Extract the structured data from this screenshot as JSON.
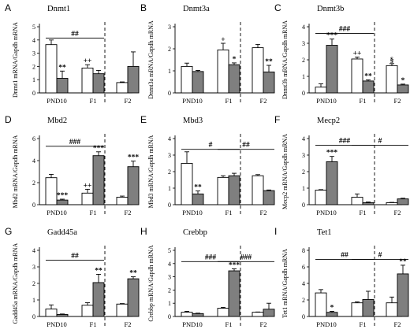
{
  "figure": {
    "colors": {
      "open": "#ffffff",
      "filled": "#7f7f7f",
      "stroke": "#000000"
    },
    "panels": [
      {
        "letter": "A",
        "title": "Dnmt1",
        "ylabel": "Dnmt1 mRNA/Gapdh mRNA"
      },
      {
        "letter": "B",
        "title": "Dnmt3a",
        "ylabel": "Dnmt3a mRNA/Gapdh mRNA"
      },
      {
        "letter": "C",
        "title": "Dnmt3b",
        "ylabel": "Dnmt3b mRNA/Gapdh mRNA"
      },
      {
        "letter": "D",
        "title": "Mbd2",
        "ylabel": "Mbd2 mRNA/Gapdh mRNA"
      },
      {
        "letter": "E",
        "title": "Mbd3",
        "ylabel": "Mbd3 mRNA/Gapdh mRNA"
      },
      {
        "letter": "F",
        "title": "Mecp2",
        "ylabel": "Mecp2 mRNA/Gapdh mRNA"
      },
      {
        "letter": "G",
        "title": "Gadd45a",
        "ylabel": "Gadd45a mRNA/Gapdh mRNA"
      },
      {
        "letter": "H",
        "title": "Crebbp",
        "ylabel": "Crebbp mRNA/Gapdh mRNA"
      },
      {
        "letter": "I",
        "title": "Tet1",
        "ylabel": "Tet1 mRNA/Gapdh mRNA"
      }
    ]
  },
  "chart_data": [
    {
      "type": "bar",
      "title": "Dnmt1",
      "ylabel": "Dnmt1 mRNA/Gapdh mRNA",
      "categories": [
        "PND10",
        "F1",
        "F2"
      ],
      "ylim": [
        0,
        5
      ],
      "yticks": [
        0,
        1,
        2,
        3,
        4,
        5
      ],
      "series": [
        {
          "values": [
            3.65,
            1.88,
            0.78
          ],
          "errors": [
            0.35,
            0.25,
            0.05
          ]
        },
        {
          "values": [
            1.1,
            1.45,
            2.0
          ],
          "errors": [
            0.55,
            0.25,
            1.1
          ]
        }
      ],
      "annotations": [
        {
          "text": "**",
          "group": 0,
          "bar": 1
        },
        {
          "text": "++",
          "group": 1,
          "bar": 0
        }
      ],
      "brackets": [
        {
          "text": "##",
          "from": 0,
          "to": 1,
          "level": 4.15
        }
      ]
    },
    {
      "type": "bar",
      "title": "Dnmt3a",
      "ylabel": "Dnmt3a mRNA/Gapdh mRNA",
      "categories": [
        "PND10",
        "F1",
        "F2"
      ],
      "ylim": [
        0,
        3
      ],
      "yticks": [
        0,
        1,
        2,
        3
      ],
      "series": [
        {
          "values": [
            1.2,
            1.95,
            2.05
          ],
          "errors": [
            0.15,
            0.3,
            0.15
          ]
        },
        {
          "values": [
            0.97,
            1.28,
            0.95
          ],
          "errors": [
            0.05,
            0.08,
            0.3
          ]
        }
      ],
      "annotations": [
        {
          "text": "+",
          "group": 1,
          "bar": 0
        },
        {
          "text": "*",
          "group": 1,
          "bar": 1
        },
        {
          "text": "**",
          "group": 2,
          "bar": 1
        }
      ],
      "brackets": []
    },
    {
      "type": "bar",
      "title": "Dnmt3b",
      "ylabel": "Dnmt3b mRNA/Gapdh mRNA",
      "categories": [
        "PND10",
        "F1",
        "F2"
      ],
      "ylim": [
        0,
        4
      ],
      "yticks": [
        0,
        1,
        2,
        3,
        4
      ],
      "series": [
        {
          "values": [
            0.35,
            2.05,
            1.65
          ],
          "errors": [
            0.2,
            0.12,
            0.12
          ]
        },
        {
          "values": [
            2.88,
            0.72,
            0.48
          ],
          "errors": [
            0.38,
            0.07,
            0.05
          ]
        }
      ],
      "annotations": [
        {
          "text": "***",
          "group": 0,
          "bar": 1
        },
        {
          "text": "++",
          "group": 1,
          "bar": 0
        },
        {
          "text": "**",
          "group": 1,
          "bar": 1
        },
        {
          "text": "§",
          "group": 2,
          "bar": 0
        },
        {
          "text": "*",
          "group": 2,
          "bar": 1
        }
      ],
      "brackets": [
        {
          "text": "###",
          "from": 0,
          "to": 1,
          "level": 3.6
        }
      ]
    },
    {
      "type": "bar",
      "title": "Mbd2",
      "ylabel": "Mbd2 mRNA/Gapdh mRNA",
      "categories": [
        "PND10",
        "F1",
        "F2"
      ],
      "ylim": [
        0,
        6
      ],
      "yticks": [
        0,
        2,
        4,
        6
      ],
      "series": [
        {
          "values": [
            2.45,
            1.05,
            0.68
          ],
          "errors": [
            0.3,
            0.35,
            0.1
          ]
        },
        {
          "values": [
            0.42,
            4.45,
            3.45
          ],
          "errors": [
            0.08,
            0.35,
            0.5
          ]
        }
      ],
      "annotations": [
        {
          "text": "***",
          "group": 0,
          "bar": 1
        },
        {
          "text": "++",
          "group": 1,
          "bar": 0
        },
        {
          "text": "***",
          "group": 1,
          "bar": 1
        },
        {
          "text": "***",
          "group": 2,
          "bar": 1
        }
      ],
      "brackets": [
        {
          "text": "###",
          "from": 0,
          "to": 1,
          "level": 5.3
        }
      ]
    },
    {
      "type": "bar",
      "title": "Mbd3",
      "ylabel": "Mbd3 mRNA/Gapdh mRNA",
      "categories": [
        "PND10",
        "F1",
        "F2"
      ],
      "ylim": [
        0,
        4
      ],
      "yticks": [
        0,
        1,
        2,
        3,
        4
      ],
      "series": [
        {
          "values": [
            2.5,
            1.65,
            1.75
          ],
          "errors": [
            0.7,
            0.1,
            0.07
          ]
        },
        {
          "values": [
            0.65,
            1.75,
            0.85
          ],
          "errors": [
            0.18,
            0.15,
            0.04
          ]
        }
      ],
      "annotations": [
        {
          "text": "**",
          "group": 0,
          "bar": 1
        }
      ],
      "brackets": [
        {
          "text": "#",
          "from": 0,
          "to": 1,
          "level": 3.35
        },
        {
          "text": "##",
          "from": 1,
          "to": 2,
          "level": 3.35
        }
      ]
    },
    {
      "type": "bar",
      "title": "Mecp2",
      "ylabel": "Mecp2 mRNA/Gapdh mRNA",
      "categories": [
        "PND10",
        "F1",
        "F2"
      ],
      "ylim": [
        0,
        4
      ],
      "yticks": [
        0,
        1,
        2,
        3,
        4
      ],
      "series": [
        {
          "values": [
            0.88,
            0.45,
            0.12
          ],
          "errors": [
            0.03,
            0.2,
            0.02
          ]
        },
        {
          "values": [
            2.6,
            0.12,
            0.35
          ],
          "errors": [
            0.32,
            0.04,
            0.04
          ]
        }
      ],
      "annotations": [
        {
          "text": "***",
          "group": 0,
          "bar": 1
        }
      ],
      "brackets": [
        {
          "text": "###",
          "from": 0,
          "to": 1,
          "level": 3.6
        },
        {
          "text": "#",
          "from": 1,
          "to": 2,
          "level": 3.6
        }
      ]
    },
    {
      "type": "bar",
      "title": "Gadd45a",
      "ylabel": "Gadd45a mRNA/Gapdh mRNA",
      "categories": [
        "PND10",
        "F1",
        "F2"
      ],
      "ylim": [
        0,
        4
      ],
      "yticks": [
        0,
        1,
        2,
        3,
        4
      ],
      "series": [
        {
          "values": [
            0.45,
            0.68,
            0.75
          ],
          "errors": [
            0.25,
            0.15,
            0.03
          ]
        },
        {
          "values": [
            0.12,
            2.05,
            2.28
          ],
          "errors": [
            0.03,
            0.5,
            0.12
          ]
        }
      ],
      "annotations": [
        {
          "text": "**",
          "group": 1,
          "bar": 1
        },
        {
          "text": "**",
          "group": 2,
          "bar": 1
        }
      ],
      "brackets": [
        {
          "text": "##",
          "from": 0,
          "to": 1,
          "level": 3.4
        }
      ]
    },
    {
      "type": "bar",
      "title": "Crebbp",
      "ylabel": "Crebbp mRNA/Gapdh mRNA",
      "categories": [
        "PND10",
        "F1",
        "F2"
      ],
      "ylim": [
        0,
        5
      ],
      "yticks": [
        0,
        1,
        2,
        3,
        4,
        5
      ],
      "series": [
        {
          "values": [
            0.32,
            0.62,
            0.32
          ],
          "errors": [
            0.07,
            0.07,
            0.02
          ]
        },
        {
          "values": [
            0.22,
            3.45,
            0.55
          ],
          "errors": [
            0.03,
            0.15,
            0.45
          ]
        }
      ],
      "annotations": [
        {
          "text": "***",
          "group": 1,
          "bar": 1
        }
      ],
      "brackets": [
        {
          "text": "###",
          "from": 0,
          "to": 1,
          "level": 4.15
        },
        {
          "text": "###",
          "from": 1,
          "to": 2,
          "level": 4.15
        }
      ]
    },
    {
      "type": "bar",
      "title": "Tet1",
      "ylabel": "Tet1 mRNA/Gapdh mRNA",
      "categories": [
        "PND10",
        "F1",
        "F2"
      ],
      "ylim": [
        0,
        8
      ],
      "yticks": [
        0,
        2,
        4,
        6,
        8
      ],
      "series": [
        {
          "values": [
            2.85,
            1.65,
            1.65
          ],
          "errors": [
            0.4,
            0.12,
            0.7
          ]
        },
        {
          "values": [
            0.5,
            2.05,
            5.15
          ],
          "errors": [
            0.12,
            1.0,
            1.05
          ]
        }
      ],
      "annotations": [
        {
          "text": "*",
          "group": 0,
          "bar": 1
        },
        {
          "text": "**",
          "group": 2,
          "bar": 1
        }
      ],
      "brackets": [
        {
          "text": "##",
          "from": 0,
          "to": 1,
          "level": 6.9
        },
        {
          "text": "#",
          "from": 1,
          "to": 2,
          "level": 6.9
        }
      ]
    }
  ]
}
